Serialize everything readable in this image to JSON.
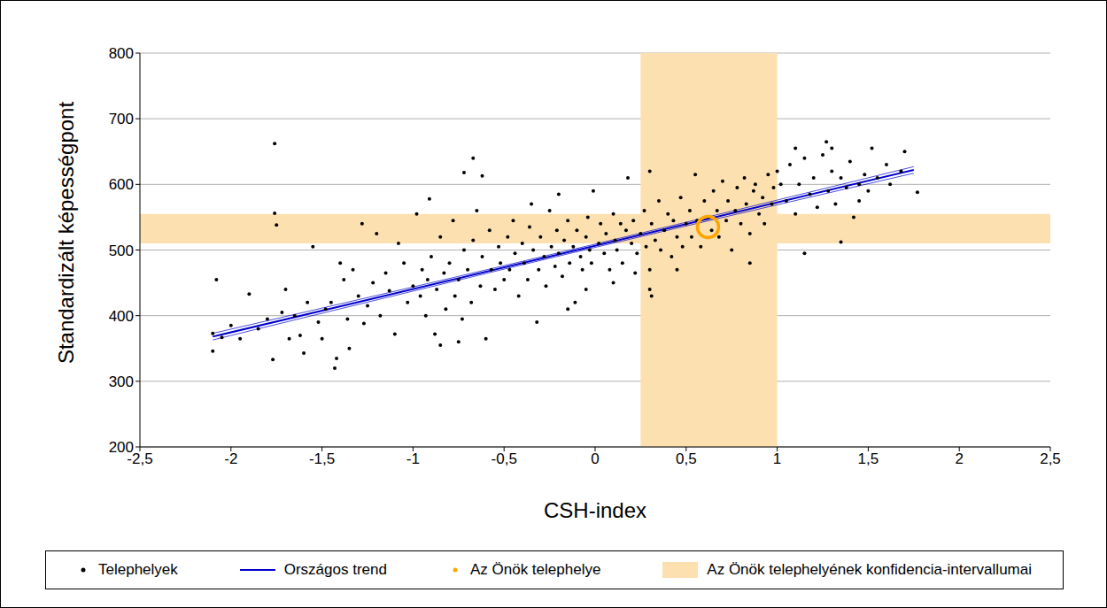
{
  "chart_data": {
    "type": "scatter",
    "x_label": "CSH-index",
    "y_label": "Standardizált képességpont",
    "xlim": [
      -2.5,
      2.5
    ],
    "xticks": [
      {
        "value": -2.5,
        "label": "-2,5"
      },
      -2,
      {
        "value": -1.5,
        "label": "-1,5"
      },
      -1,
      {
        "value": -0.5,
        "label": "-0,5"
      },
      0,
      {
        "value": 0.5,
        "label": "0,5"
      },
      1,
      {
        "value": 1.5,
        "label": "1,5"
      },
      2,
      {
        "value": 2.5,
        "label": "2,5"
      }
    ],
    "ylim": [
      200,
      800
    ],
    "yticks": [
      200,
      300,
      400,
      500,
      600,
      700,
      800
    ],
    "grid": true,
    "legend": "bottom",
    "series": [
      {
        "name": "Telephelyek",
        "type": "scatter",
        "marker": "circle",
        "color": "#000000",
        "x": [
          -1.76,
          -1.76,
          -1.75,
          -2.1,
          -2.1,
          -2.08,
          -2.05,
          -2.0,
          -1.9,
          -1.77,
          -1.43,
          -0.67,
          -0.62,
          -0.72,
          1.27,
          1.1,
          1.7,
          1.77,
          1.15,
          1.35,
          0.3,
          0.3,
          0.31,
          1.52,
          -1.65,
          -1.62,
          -1.6,
          -1.58,
          -1.55,
          -1.52,
          -1.5,
          -1.48,
          -1.45,
          -1.42,
          -1.4,
          -1.38,
          -1.36,
          -1.35,
          -1.33,
          -1.3,
          -1.28,
          -1.27,
          -1.25,
          -1.22,
          -1.2,
          -1.18,
          -1.15,
          -1.13,
          -1.1,
          -1.08,
          -1.05,
          -1.03,
          -1.0,
          -1.7,
          -1.72,
          -1.68,
          -1.8,
          -1.85,
          -1.95,
          -0.98,
          -0.96,
          -0.95,
          -0.93,
          -0.92,
          -0.9,
          -0.88,
          -0.87,
          -0.85,
          -0.83,
          -0.82,
          -0.8,
          -0.78,
          -0.77,
          -0.75,
          -0.73,
          -0.72,
          -0.7,
          -0.68,
          -0.67,
          -0.65,
          -0.63,
          -0.62,
          -0.6,
          -0.58,
          -0.57,
          -0.55,
          -0.53,
          -0.52,
          -0.5,
          -0.91,
          -0.85,
          -0.75,
          -0.48,
          -0.47,
          -0.45,
          -0.44,
          -0.42,
          -0.4,
          -0.39,
          -0.37,
          -0.36,
          -0.34,
          -0.32,
          -0.31,
          -0.3,
          -0.28,
          -0.27,
          -0.25,
          -0.24,
          -0.22,
          -0.21,
          -0.2,
          -0.18,
          -0.17,
          -0.15,
          -0.14,
          -0.12,
          -0.11,
          -0.1,
          -0.08,
          -0.07,
          -0.05,
          -0.04,
          -0.03,
          -0.02,
          -0.01,
          -0.2,
          -0.35,
          -0.15,
          -0.05,
          0.02,
          0.03,
          0.05,
          0.06,
          0.08,
          0.1,
          0.11,
          0.12,
          0.14,
          0.15,
          0.17,
          0.18,
          0.2,
          0.21,
          0.23,
          0.25,
          0.27,
          0.28,
          0.3,
          0.31,
          0.33,
          0.35,
          0.36,
          0.38,
          0.4,
          0.42,
          0.43,
          0.45,
          0.47,
          0.48,
          0.5,
          0.1,
          0.22,
          0.45,
          0.52,
          0.53,
          0.55,
          0.56,
          0.58,
          0.6,
          0.62,
          0.64,
          0.65,
          0.67,
          0.68,
          0.7,
          0.72,
          0.73,
          0.75,
          0.77,
          0.78,
          0.8,
          0.82,
          0.83,
          0.85,
          0.87,
          0.88,
          0.9,
          0.92,
          0.93,
          0.95,
          0.97,
          0.98,
          1.0,
          0.85,
          1.02,
          1.05,
          1.07,
          1.1,
          1.12,
          1.15,
          1.18,
          1.2,
          1.22,
          1.25,
          1.28,
          1.3,
          1.32,
          1.35,
          1.38,
          1.4,
          1.42,
          1.45,
          1.48,
          1.5,
          1.55,
          1.6,
          1.62,
          1.68,
          1.3,
          1.45
        ],
        "values": [
          662,
          556,
          538,
          346,
          373,
          455,
          367,
          385,
          433,
          333,
          320,
          640,
          613,
          618,
          665,
          655,
          650,
          588,
          495,
          512,
          470,
          440,
          430,
          655,
          400,
          370,
          343,
          420,
          505,
          390,
          365,
          410,
          420,
          335,
          480,
          455,
          395,
          350,
          470,
          430,
          540,
          388,
          415,
          450,
          525,
          400,
          465,
          438,
          372,
          510,
          480,
          420,
          445,
          440,
          405,
          365,
          395,
          380,
          365,
          555,
          430,
          470,
          400,
          455,
          490,
          372,
          440,
          520,
          465,
          410,
          480,
          545,
          430,
          455,
          395,
          500,
          470,
          420,
          515,
          560,
          445,
          490,
          365,
          530,
          470,
          440,
          505,
          480,
          455,
          578,
          355,
          360,
          520,
          470,
          545,
          495,
          430,
          510,
          480,
          455,
          535,
          500,
          390,
          470,
          520,
          490,
          445,
          560,
          505,
          475,
          530,
          495,
          460,
          515,
          545,
          480,
          505,
          420,
          530,
          490,
          470,
          520,
          550,
          500,
          480,
          590,
          585,
          570,
          410,
          440,
          510,
          540,
          495,
          525,
          470,
          555,
          515,
          500,
          540,
          480,
          530,
          610,
          510,
          545,
          495,
          525,
          560,
          505,
          620,
          540,
          515,
          575,
          500,
          530,
          555,
          490,
          545,
          520,
          580,
          505,
          540,
          450,
          465,
          470,
          560,
          520,
          615,
          545,
          505,
          575,
          550,
          530,
          590,
          560,
          520,
          605,
          545,
          575,
          500,
          560,
          595,
          540,
          610,
          570,
          525,
          590,
          600,
          555,
          580,
          540,
          615,
          570,
          595,
          620,
          480,
          600,
          575,
          630,
          555,
          600,
          640,
          585,
          610,
          565,
          645,
          590,
          620,
          570,
          610,
          595,
          635,
          550,
          600,
          615,
          590,
          610,
          630,
          600,
          620,
          655,
          575
        ]
      },
      {
        "name": "Országos trend",
        "type": "line",
        "line_style": "solid",
        "color": "#0000cc",
        "x": [
          -2.1,
          1.75
        ],
        "values": [
          368,
          622
        ]
      },
      {
        "name": "Az Önök telephelye",
        "type": "scatter",
        "marker": "ring",
        "color": "#ffa500",
        "x": [
          0.62
        ],
        "values": [
          535
        ]
      }
    ],
    "trend_band": {
      "color": "#0000cc",
      "x": [
        -2.1,
        0,
        1.75
      ],
      "lower": [
        363,
        504,
        617
      ],
      "upper": [
        373,
        509,
        627
      ]
    },
    "confidence_intervals": {
      "name": "Az Önök telephelyének konfidencia-intervallumai",
      "color": "#fde0b0",
      "x": [
        0.25,
        1.0
      ],
      "y": [
        510,
        555
      ]
    }
  }
}
